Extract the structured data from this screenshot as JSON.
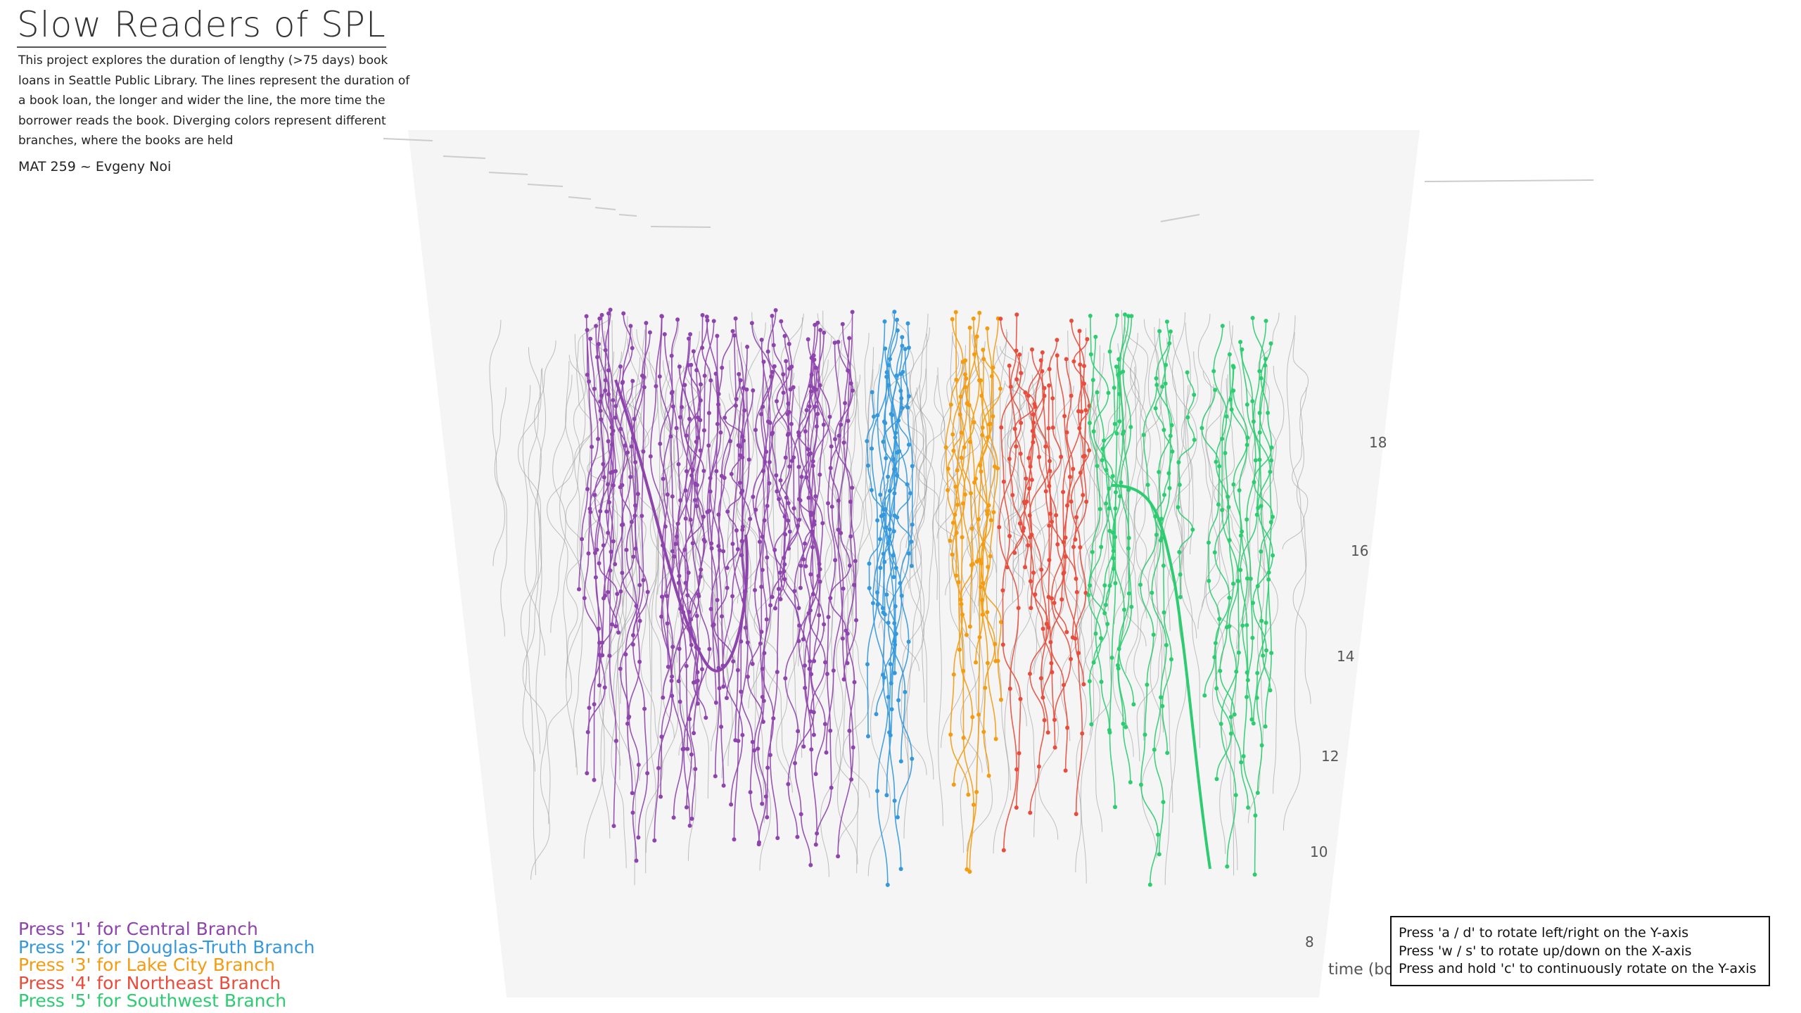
{
  "title": "Slow Readers of SPL",
  "description": "This project explores the duration of lengthy (>75 days) book loans in Seattle Public Library. The lines represent the duration of a book loan, the longer and wider the line, the more time the borrower reads the book. Diverging colors represent different branches, where the books are held",
  "credit": "MAT 259 ~ Evgeny Noi",
  "legend": [
    {
      "label": "Press '1' for Central Branch",
      "color": "#8e44ad"
    },
    {
      "label": "Press '2' for Douglas-Truth Branch",
      "color": "#3498db"
    },
    {
      "label": "Press '3' for Lake City Branch",
      "color": "#f39c12"
    },
    {
      "label": "Press '4' for Northeast Branch",
      "color": "#e74c3c"
    },
    {
      "label": "Press '5' for Southwest Branch",
      "color": "#2ecc71"
    }
  ],
  "help": [
    "Press 'a / d' to rotate left/right on the Y-axis",
    "Press 'w / s' to rotate up/down on the X-axis",
    "Press and hold 'c' to continuously rotate on the Y-axis"
  ],
  "axis": {
    "label": "time (borrowed)",
    "ticks": [
      "8",
      "10",
      "12",
      "14",
      "16",
      "18"
    ]
  },
  "colors": {
    "background_plane": "#f5f5f5",
    "gray_lines": "#9a9a9a"
  }
}
